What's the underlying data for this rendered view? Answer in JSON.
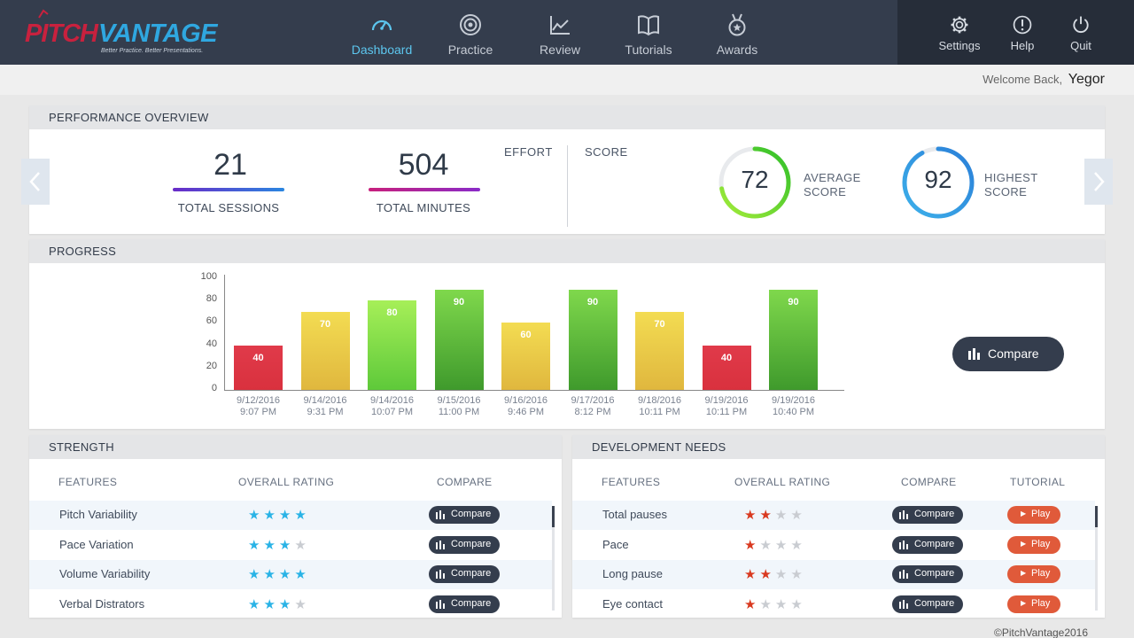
{
  "brand": {
    "part1": "PITCH",
    "part2": "VANTAGE",
    "tagline": "Better Practice. Better Presentations."
  },
  "nav": [
    {
      "label": "Dashboard",
      "icon": "speedometer-icon",
      "active": true
    },
    {
      "label": "Practice",
      "icon": "target-icon",
      "active": false
    },
    {
      "label": "Review",
      "icon": "line-chart-icon",
      "active": false
    },
    {
      "label": "Tutorials",
      "icon": "book-icon",
      "active": false
    },
    {
      "label": "Awards",
      "icon": "medal-icon",
      "active": false
    }
  ],
  "utility": [
    {
      "label": "Settings",
      "icon": "gear-icon"
    },
    {
      "label": "Help",
      "icon": "alert-circle-icon"
    },
    {
      "label": "Quit",
      "icon": "power-icon"
    }
  ],
  "welcome": {
    "prefix": "Welcome Back,",
    "name": "Yegor"
  },
  "overview": {
    "title": "PERFORMANCE OVERVIEW",
    "sessions": {
      "value": "21",
      "label": "TOTAL SESSIONS"
    },
    "minutes": {
      "value": "504",
      "label": "TOTAL MINUTES"
    },
    "toggle_effort": "EFFORT",
    "toggle_score": "SCORE",
    "average": {
      "value": "72",
      "label_line1": "AVERAGE",
      "label_line2": "SCORE",
      "percent": 72
    },
    "highest": {
      "value": "92",
      "label_line1": "HIGHEST",
      "label_line2": "SCORE",
      "percent": 92
    }
  },
  "progress": {
    "title": "PROGRESS",
    "compare_label": "Compare"
  },
  "chart_data": {
    "type": "bar",
    "title": "PROGRESS",
    "ylim": [
      0,
      100
    ],
    "yticks": [
      "100",
      "80",
      "60",
      "40",
      "20",
      "0"
    ],
    "categories": [
      [
        "9/12/2016",
        "9:07 PM"
      ],
      [
        "9/14/2016",
        "9:31 PM"
      ],
      [
        "9/14/2016",
        "10:07 PM"
      ],
      [
        "9/15/2016",
        "11:00 PM"
      ],
      [
        "9/16/2016",
        "9:46 PM"
      ],
      [
        "9/17/2016",
        "8:12 PM"
      ],
      [
        "9/18/2016",
        "10:11 PM"
      ],
      [
        "9/19/2016",
        "10:11 PM"
      ],
      [
        "9/19/2016",
        "10:40 PM"
      ]
    ],
    "values": [
      40,
      70,
      80,
      90,
      60,
      90,
      70,
      40,
      90
    ],
    "colors": {
      "low": [
        "#e03a4a",
        "#d9313e"
      ],
      "mid": [
        "#f3dc52",
        "#e0b73e"
      ],
      "high": [
        "#a6ef58",
        "#5ec93a"
      ],
      "top": [
        "#7fd84c",
        "#3f9a2c"
      ]
    }
  },
  "strength": {
    "title": "STRENGTH",
    "headers": {
      "features": "FEATURES",
      "rating": "OVERALL RATING",
      "compare": "COMPARE"
    },
    "compare_label": "Compare",
    "star_color": "#29b3e6",
    "rows": [
      {
        "feature": "Pitch Variability",
        "rating": 4
      },
      {
        "feature": "Pace Variation",
        "rating": 3
      },
      {
        "feature": "Volume Variability",
        "rating": 4
      },
      {
        "feature": "Verbal Distrators",
        "rating": 3
      }
    ]
  },
  "development": {
    "title": "DEVELOPMENT NEEDS",
    "headers": {
      "features": "FEATURES",
      "rating": "OVERALL RATING",
      "compare": "COMPARE",
      "tutorial": "TUTORIAL"
    },
    "compare_label": "Compare",
    "play_label": "Play",
    "star_color": "#d9391f",
    "rows": [
      {
        "feature": "Total pauses",
        "rating": 2
      },
      {
        "feature": "Pace",
        "rating": 1
      },
      {
        "feature": "Long pause",
        "rating": 2
      },
      {
        "feature": "Eye contact",
        "rating": 1
      }
    ]
  },
  "footer": "©PitchVantage2016"
}
